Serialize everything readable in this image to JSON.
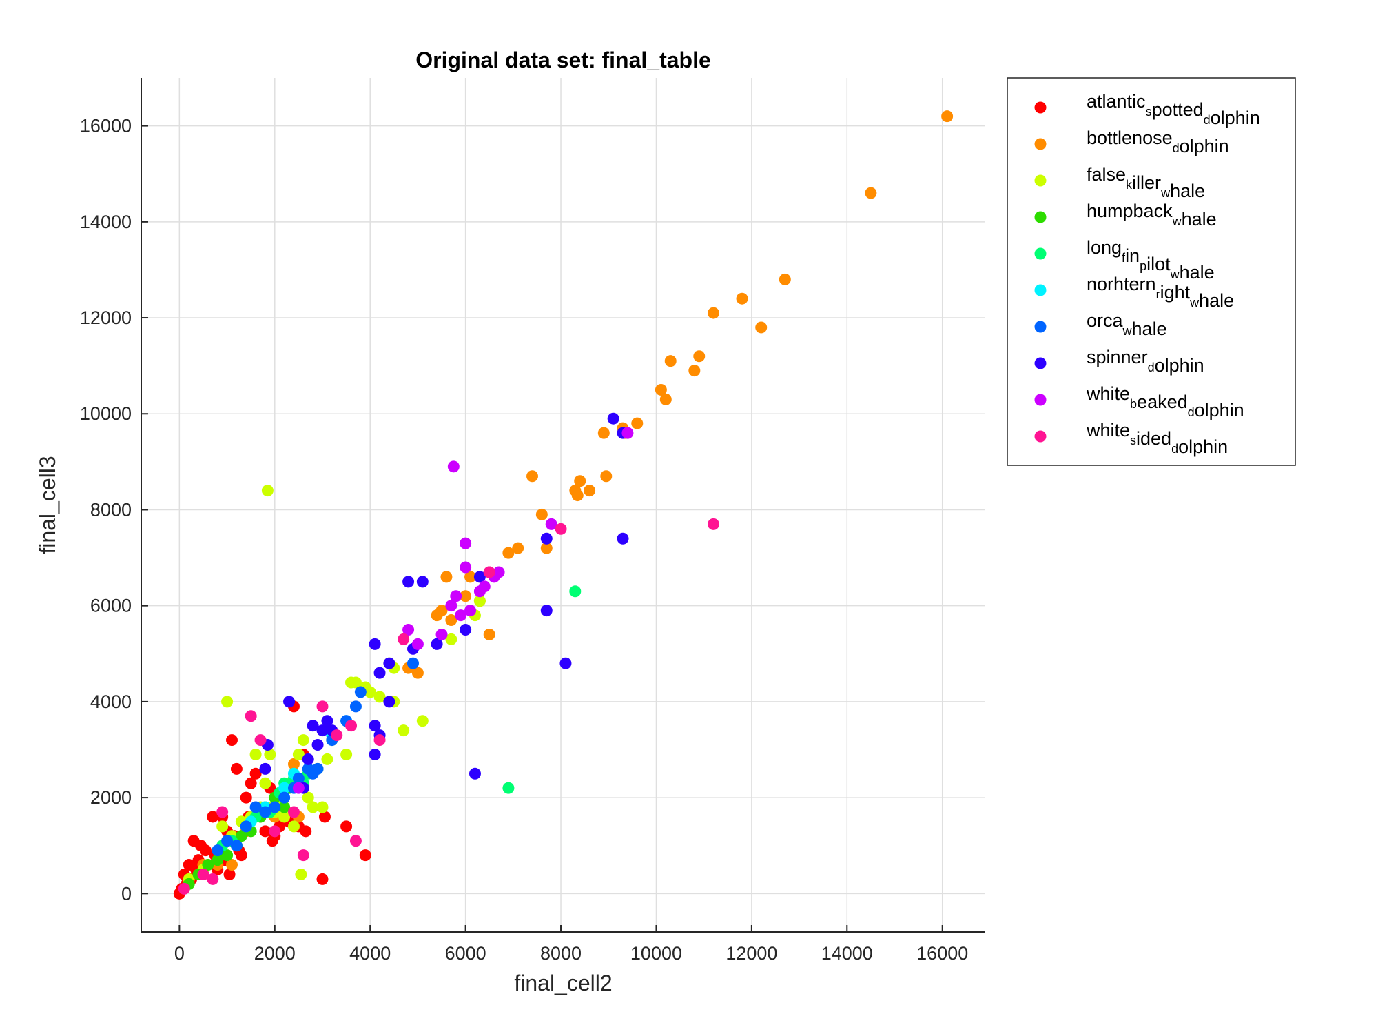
{
  "chart_data": {
    "type": "scatter",
    "title": "Original data set: final_table",
    "xlabel": "final_cell2",
    "ylabel": "final_cell3",
    "xlim": [
      -800,
      16900
    ],
    "ylim": [
      -800,
      17000
    ],
    "xticks": [
      0,
      2000,
      4000,
      6000,
      8000,
      10000,
      12000,
      14000,
      16000
    ],
    "yticks": [
      0,
      2000,
      4000,
      6000,
      8000,
      10000,
      12000,
      14000,
      16000
    ],
    "grid": true,
    "legend_position": "outside-top-right",
    "series": [
      {
        "name_parts": [
          [
            "atlantic",
            ""
          ],
          [
            "s",
            "sub"
          ],
          [
            "potted",
            ""
          ],
          [
            "d",
            "sub"
          ],
          [
            "olphin",
            ""
          ]
        ],
        "color": "#ff0000",
        "points": [
          [
            0,
            0
          ],
          [
            50,
            100
          ],
          [
            100,
            400
          ],
          [
            150,
            200
          ],
          [
            200,
            600
          ],
          [
            250,
            300
          ],
          [
            300,
            1100
          ],
          [
            350,
            500
          ],
          [
            400,
            700
          ],
          [
            450,
            1000
          ],
          [
            500,
            400
          ],
          [
            550,
            900
          ],
          [
            600,
            600
          ],
          [
            700,
            1600
          ],
          [
            750,
            800
          ],
          [
            800,
            500
          ],
          [
            850,
            900
          ],
          [
            900,
            1600
          ],
          [
            950,
            700
          ],
          [
            1000,
            1300
          ],
          [
            1050,
            400
          ],
          [
            1100,
            3200
          ],
          [
            1150,
            1200
          ],
          [
            1200,
            2600
          ],
          [
            1250,
            900
          ],
          [
            1300,
            800
          ],
          [
            1400,
            2000
          ],
          [
            1450,
            1600
          ],
          [
            1500,
            2300
          ],
          [
            1600,
            2500
          ],
          [
            1700,
            1600
          ],
          [
            1800,
            1300
          ],
          [
            1900,
            2200
          ],
          [
            1950,
            1100
          ],
          [
            2000,
            1200
          ],
          [
            2100,
            1400
          ],
          [
            2300,
            1500
          ],
          [
            2400,
            3900
          ],
          [
            2500,
            1400
          ],
          [
            2600,
            2900
          ],
          [
            2650,
            1300
          ],
          [
            3000,
            300
          ],
          [
            3050,
            1600
          ],
          [
            3500,
            1400
          ],
          [
            3900,
            800
          ],
          [
            6500,
            6700
          ]
        ]
      },
      {
        "name_parts": [
          [
            "bottlenose",
            ""
          ],
          [
            "d",
            "sub"
          ],
          [
            "olphin",
            ""
          ]
        ],
        "color": "#ff8c00",
        "points": [
          [
            500,
            600
          ],
          [
            800,
            600
          ],
          [
            1100,
            600
          ],
          [
            1400,
            1300
          ],
          [
            2000,
            1600
          ],
          [
            2400,
            2700
          ],
          [
            2500,
            1600
          ],
          [
            4800,
            4700
          ],
          [
            5000,
            4600
          ],
          [
            5400,
            5800
          ],
          [
            5500,
            5900
          ],
          [
            5600,
            6600
          ],
          [
            5700,
            5700
          ],
          [
            6000,
            6200
          ],
          [
            6100,
            6600
          ],
          [
            6300,
            6100
          ],
          [
            6500,
            5400
          ],
          [
            6900,
            7100
          ],
          [
            7100,
            7200
          ],
          [
            7400,
            8700
          ],
          [
            7600,
            7900
          ],
          [
            7700,
            7200
          ],
          [
            8300,
            8400
          ],
          [
            8350,
            8300
          ],
          [
            8400,
            8600
          ],
          [
            8600,
            8400
          ],
          [
            8900,
            9600
          ],
          [
            8950,
            8700
          ],
          [
            9300,
            9700
          ],
          [
            9350,
            9600
          ],
          [
            9600,
            9800
          ],
          [
            10100,
            10500
          ],
          [
            10200,
            10300
          ],
          [
            10300,
            11100
          ],
          [
            10800,
            10900
          ],
          [
            10900,
            11200
          ],
          [
            11200,
            12100
          ],
          [
            11800,
            12400
          ],
          [
            12200,
            11800
          ],
          [
            12700,
            12800
          ],
          [
            14500,
            14600
          ],
          [
            16100,
            16200
          ]
        ]
      },
      {
        "name_parts": [
          [
            "false",
            ""
          ],
          [
            "k",
            "sub"
          ],
          [
            "iller",
            ""
          ],
          [
            "w",
            "sub"
          ],
          [
            "hale",
            ""
          ]
        ],
        "color": "#ccff00",
        "points": [
          [
            200,
            300
          ],
          [
            500,
            500
          ],
          [
            900,
            1400
          ],
          [
            1000,
            4000
          ],
          [
            1100,
            1200
          ],
          [
            1300,
            1500
          ],
          [
            1500,
            1600
          ],
          [
            1600,
            2900
          ],
          [
            1700,
            1800
          ],
          [
            1800,
            2300
          ],
          [
            1850,
            8400
          ],
          [
            1900,
            2900
          ],
          [
            1950,
            1800
          ],
          [
            2000,
            1700
          ],
          [
            2100,
            1900
          ],
          [
            2200,
            1600
          ],
          [
            2300,
            2300
          ],
          [
            2400,
            1400
          ],
          [
            2500,
            2900
          ],
          [
            2550,
            400
          ],
          [
            2600,
            3200
          ],
          [
            2700,
            2000
          ],
          [
            2800,
            1800
          ],
          [
            2900,
            2600
          ],
          [
            3000,
            1800
          ],
          [
            3100,
            2800
          ],
          [
            3200,
            3200
          ],
          [
            3500,
            2900
          ],
          [
            3600,
            4400
          ],
          [
            3700,
            4400
          ],
          [
            3900,
            4300
          ],
          [
            4000,
            4200
          ],
          [
            4200,
            4100
          ],
          [
            4400,
            4800
          ],
          [
            4500,
            4700
          ],
          [
            4500,
            4000
          ],
          [
            4700,
            3400
          ],
          [
            5100,
            3600
          ],
          [
            5700,
            5300
          ],
          [
            6200,
            5800
          ],
          [
            6300,
            6100
          ]
        ]
      },
      {
        "name_parts": [
          [
            "humpback",
            ""
          ],
          [
            "w",
            "sub"
          ],
          [
            "hale",
            ""
          ]
        ],
        "color": "#2ddc00",
        "points": [
          [
            200,
            200
          ],
          [
            400,
            400
          ],
          [
            600,
            600
          ],
          [
            800,
            700
          ],
          [
            1000,
            800
          ],
          [
            1200,
            1000
          ],
          [
            1300,
            1200
          ],
          [
            1500,
            1300
          ],
          [
            1700,
            1600
          ],
          [
            1800,
            1800
          ],
          [
            2000,
            2000
          ],
          [
            2200,
            1800
          ],
          [
            2300,
            2200
          ],
          [
            2500,
            2400
          ]
        ]
      },
      {
        "name_parts": [
          [
            "long",
            ""
          ],
          [
            "f",
            "sub"
          ],
          [
            "in",
            ""
          ],
          [
            "p",
            "sub"
          ],
          [
            "ilot",
            ""
          ],
          [
            "w",
            "sub"
          ],
          [
            "hale",
            ""
          ]
        ],
        "color": "#00ff73",
        "points": [
          [
            900,
            1000
          ],
          [
            1100,
            1100
          ],
          [
            1400,
            1400
          ],
          [
            1600,
            1600
          ],
          [
            1900,
            1700
          ],
          [
            2100,
            2100
          ],
          [
            2200,
            2300
          ],
          [
            2400,
            2400
          ],
          [
            2600,
            2300
          ],
          [
            2700,
            2500
          ],
          [
            6900,
            2200
          ],
          [
            8300,
            6300
          ]
        ]
      },
      {
        "name_parts": [
          [
            "norhtern",
            ""
          ],
          [
            "r",
            "sub"
          ],
          [
            "ight",
            ""
          ],
          [
            "w",
            "sub"
          ],
          [
            "hale",
            ""
          ]
        ],
        "color": "#00f2ff",
        "points": [
          [
            1500,
            1500
          ],
          [
            1800,
            1800
          ],
          [
            2200,
            2200
          ],
          [
            2400,
            2500
          ],
          [
            3200,
            3300
          ],
          [
            3500,
            3600
          ]
        ]
      },
      {
        "name_parts": [
          [
            "orca",
            ""
          ],
          [
            "w",
            "sub"
          ],
          [
            "hale",
            ""
          ]
        ],
        "color": "#0064ff",
        "points": [
          [
            800,
            900
          ],
          [
            1000,
            1100
          ],
          [
            1200,
            1000
          ],
          [
            1400,
            1400
          ],
          [
            1600,
            1800
          ],
          [
            1800,
            1700
          ],
          [
            2000,
            1800
          ],
          [
            2200,
            2000
          ],
          [
            2400,
            2200
          ],
          [
            2500,
            2400
          ],
          [
            2700,
            2600
          ],
          [
            2800,
            2500
          ],
          [
            2900,
            2600
          ],
          [
            3200,
            3200
          ],
          [
            3500,
            3600
          ],
          [
            3700,
            3900
          ],
          [
            3800,
            4200
          ],
          [
            4900,
            4800
          ]
        ]
      },
      {
        "name_parts": [
          [
            "spinner",
            ""
          ],
          [
            "d",
            "sub"
          ],
          [
            "olphin",
            ""
          ]
        ],
        "color": "#2d00ff",
        "points": [
          [
            1800,
            2600
          ],
          [
            1850,
            3100
          ],
          [
            2300,
            4000
          ],
          [
            2600,
            2200
          ],
          [
            2700,
            2800
          ],
          [
            2800,
            3500
          ],
          [
            2900,
            3100
          ],
          [
            3000,
            3400
          ],
          [
            3100,
            3600
          ],
          [
            3200,
            3400
          ],
          [
            4100,
            5200
          ],
          [
            4100,
            2900
          ],
          [
            4100,
            3500
          ],
          [
            4200,
            3300
          ],
          [
            4200,
            4600
          ],
          [
            4400,
            4800
          ],
          [
            4400,
            4000
          ],
          [
            4800,
            6500
          ],
          [
            4900,
            5100
          ],
          [
            5100,
            6500
          ],
          [
            5400,
            5200
          ],
          [
            6000,
            5500
          ],
          [
            6200,
            2500
          ],
          [
            6300,
            6600
          ],
          [
            7700,
            5900
          ],
          [
            7700,
            7400
          ],
          [
            8100,
            4800
          ],
          [
            9100,
            9900
          ],
          [
            9300,
            7400
          ],
          [
            9300,
            9600
          ]
        ]
      },
      {
        "name_parts": [
          [
            "white",
            ""
          ],
          [
            "b",
            "sub"
          ],
          [
            "eaked",
            ""
          ],
          [
            "d",
            "sub"
          ],
          [
            "olphin",
            ""
          ]
        ],
        "color": "#cc00ff",
        "points": [
          [
            2500,
            2200
          ],
          [
            4800,
            5500
          ],
          [
            5000,
            5200
          ],
          [
            5500,
            5400
          ],
          [
            5700,
            6000
          ],
          [
            5750,
            8900
          ],
          [
            5800,
            6200
          ],
          [
            5900,
            5800
          ],
          [
            6000,
            6800
          ],
          [
            6000,
            7300
          ],
          [
            6100,
            5900
          ],
          [
            6300,
            6300
          ],
          [
            6400,
            6400
          ],
          [
            6500,
            6700
          ],
          [
            6600,
            6600
          ],
          [
            6700,
            6700
          ],
          [
            7800,
            7700
          ],
          [
            9400,
            9600
          ]
        ]
      },
      {
        "name_parts": [
          [
            "white",
            ""
          ],
          [
            "s",
            "sub"
          ],
          [
            "ided",
            ""
          ],
          [
            "d",
            "sub"
          ],
          [
            "olphin",
            ""
          ]
        ],
        "color": "#ff1493",
        "points": [
          [
            100,
            100
          ],
          [
            500,
            400
          ],
          [
            700,
            300
          ],
          [
            900,
            1700
          ],
          [
            1500,
            3700
          ],
          [
            1700,
            3200
          ],
          [
            2000,
            1300
          ],
          [
            2400,
            1700
          ],
          [
            2600,
            800
          ],
          [
            3000,
            3900
          ],
          [
            3300,
            3300
          ],
          [
            3600,
            3500
          ],
          [
            3700,
            1100
          ],
          [
            4200,
            3200
          ],
          [
            4700,
            5300
          ],
          [
            6500,
            6700
          ],
          [
            8000,
            7600
          ],
          [
            11200,
            7700
          ]
        ]
      }
    ]
  }
}
